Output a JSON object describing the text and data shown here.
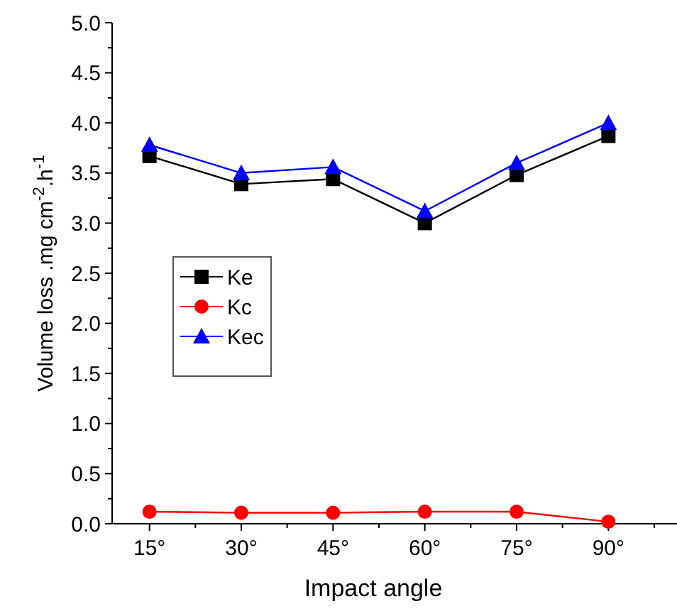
{
  "chart_data": {
    "type": "line",
    "xlabel": "Impact angle",
    "ylabel": "Volume loss .mg cm$^{-2}$.h$^{-1}$",
    "categories": [
      "15°",
      "30°",
      "45°",
      "60°",
      "75°",
      "90°"
    ],
    "series": [
      {
        "name": "Ke",
        "color": "#000000",
        "marker": "square",
        "values": [
          3.67,
          3.39,
          3.44,
          3.0,
          3.48,
          3.87
        ]
      },
      {
        "name": "Kc",
        "color": "#ff0000",
        "marker": "circle",
        "values": [
          0.12,
          0.11,
          0.11,
          0.12,
          0.12,
          0.02
        ]
      },
      {
        "name": "Kec",
        "color": "#0000ff",
        "marker": "triangle",
        "values": [
          3.78,
          3.5,
          3.56,
          3.12,
          3.6,
          4.0
        ]
      }
    ],
    "ylim": [
      0,
      5
    ],
    "yticks": [
      {
        "value": 0,
        "label": "0.0"
      },
      0.5,
      {
        "value": 1,
        "label": "1.0"
      },
      1.5,
      {
        "value": 2,
        "label": "2.0"
      },
      2.5,
      {
        "value": 3,
        "label": "3.0"
      },
      3.5,
      {
        "value": 4,
        "label": "4.0"
      },
      4.5,
      {
        "value": 5,
        "label": "5.0"
      }
    ],
    "grid": false,
    "legend": "left",
    "line_style": "solid"
  }
}
